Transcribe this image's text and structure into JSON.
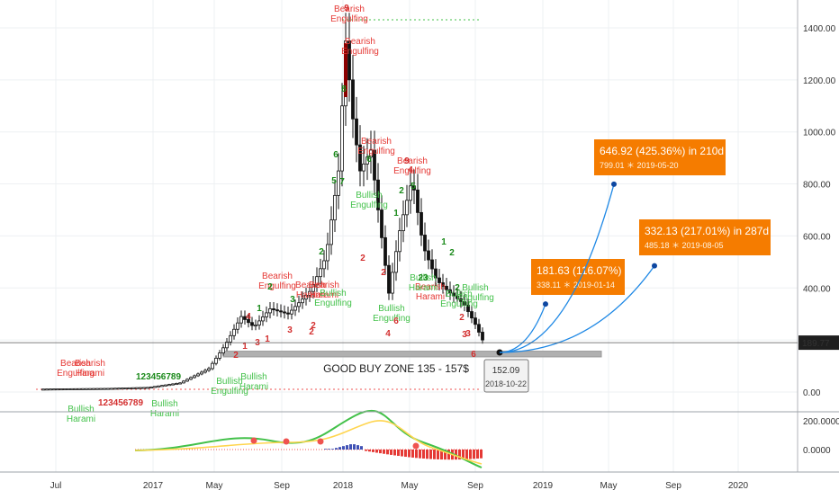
{
  "chart_data": {
    "type": "candlestick",
    "price_axis": {
      "ticks": [
        "1400.00",
        "1200.00",
        "1000.00",
        "800.00",
        "600.00",
        "400.00",
        "200.00",
        "0.00"
      ],
      "current_price": "189.77"
    },
    "time_axis": {
      "ticks": [
        "Jul",
        "2017",
        "May",
        "Sep",
        "2018",
        "May",
        "Sep",
        "2019",
        "May",
        "Sep",
        "2020"
      ]
    },
    "oscillator_axis": {
      "ticks": [
        "200.0000",
        "0.0000"
      ]
    },
    "zone": {
      "label": "GOOD BUY ZONE 135 - 157$",
      "low": 135,
      "high": 157
    },
    "anchor": {
      "price": "152.09",
      "date": "2018-10-22"
    },
    "projections": [
      {
        "headline": "181.63 (116.07%) in 84d",
        "detail": "338.11 ＊ 2019-01-14",
        "target": 338.11
      },
      {
        "headline": "646.92 (425.36%) in 210d",
        "detail": "799.01 ＊ 2019-05-20",
        "target": 799.01
      },
      {
        "headline": "332.13 (217.01%) in 287d",
        "detail": "485.18 ＊ 2019-08-05",
        "target": 485.18
      }
    ],
    "patterns": [
      {
        "text": "Bearish",
        "kind": "bear"
      },
      {
        "text": "Engulfing",
        "kind": "bear"
      },
      {
        "text": "Bearish",
        "kind": "bear"
      },
      {
        "text": "Engulfing",
        "kind": "bear"
      },
      {
        "text": "Bearish",
        "kind": "bear"
      },
      {
        "text": "Engulfing",
        "kind": "bear"
      },
      {
        "text": "Bearish",
        "kind": "bear"
      },
      {
        "text": "Harami",
        "kind": "bear"
      },
      {
        "text": "Bearish",
        "kind": "bear"
      },
      {
        "text": "Engulfing",
        "kind": "bear"
      },
      {
        "text": "Bearish",
        "kind": "bear"
      },
      {
        "text": "Engulfing",
        "kind": "bear"
      },
      {
        "text": "Bearish",
        "kind": "bear"
      },
      {
        "text": "Harami",
        "kind": "bear"
      },
      {
        "text": "Bearish",
        "kind": "bear"
      },
      {
        "text": "Engulfing",
        "kind": "bear"
      },
      {
        "text": "Bearish",
        "kind": "bear"
      },
      {
        "text": "Harami",
        "kind": "bear"
      },
      {
        "text": "Bearish",
        "kind": "bear"
      },
      {
        "text": "Harami",
        "kind": "bear"
      },
      {
        "text": "Bullish",
        "kind": "bull"
      },
      {
        "text": "Engulfing",
        "kind": "bull"
      },
      {
        "text": "Bullish",
        "kind": "bull"
      },
      {
        "text": "Harami",
        "kind": "bull"
      },
      {
        "text": "Bullish",
        "kind": "bull"
      },
      {
        "text": "Engulfing",
        "kind": "bull"
      },
      {
        "text": "Bullish",
        "kind": "bull"
      },
      {
        "text": "Engulfing",
        "kind": "bull"
      },
      {
        "text": "Bullish",
        "kind": "bull"
      },
      {
        "text": "Harami",
        "kind": "bull"
      },
      {
        "text": "Bullish",
        "kind": "bull"
      },
      {
        "text": "Engulfing",
        "kind": "bull"
      },
      {
        "text": "Bullish",
        "kind": "bull"
      },
      {
        "text": "Harami",
        "kind": "bull"
      },
      {
        "text": "Bullish",
        "kind": "bull"
      },
      {
        "text": "Engulfing",
        "kind": "bull"
      },
      {
        "text": "Bullish",
        "kind": "bull"
      },
      {
        "text": "Engulfing",
        "kind": "bull"
      },
      {
        "text": "Bullish",
        "kind": "bull"
      },
      {
        "text": "Harami",
        "kind": "bull"
      }
    ],
    "sequences": [
      {
        "text": "9",
        "kind": "r"
      },
      {
        "text": "8",
        "kind": "g"
      },
      {
        "text": "6",
        "kind": "g"
      },
      {
        "text": "5",
        "kind": "g"
      },
      {
        "text": "7",
        "kind": "g"
      },
      {
        "text": "2",
        "kind": "g"
      },
      {
        "text": "9",
        "kind": "r"
      },
      {
        "text": "4",
        "kind": "r"
      },
      {
        "text": "5",
        "kind": "g"
      },
      {
        "text": "2",
        "kind": "g"
      },
      {
        "text": "1",
        "kind": "g"
      },
      {
        "text": "2",
        "kind": "g"
      },
      {
        "text": "2",
        "kind": "r"
      },
      {
        "text": "2",
        "kind": "r"
      },
      {
        "text": "3",
        "kind": "r"
      },
      {
        "text": "4",
        "kind": "r"
      },
      {
        "text": "6",
        "kind": "r"
      },
      {
        "text": "23",
        "kind": "g"
      },
      {
        "text": "1",
        "kind": "g"
      },
      {
        "text": "2",
        "kind": "g"
      },
      {
        "text": "3",
        "kind": "r"
      },
      {
        "text": "6",
        "kind": "r"
      },
      {
        "text": "1",
        "kind": "r"
      },
      {
        "text": "2",
        "kind": "r"
      },
      {
        "text": "3",
        "kind": "r"
      },
      {
        "text": "2",
        "kind": "r"
      },
      {
        "text": "4",
        "kind": "r"
      },
      {
        "text": "1",
        "kind": "g"
      },
      {
        "text": "2",
        "kind": "g"
      },
      {
        "text": "3",
        "kind": "g"
      },
      {
        "text": "1",
        "kind": "r"
      },
      {
        "text": "2",
        "kind": "r"
      },
      {
        "text": "123456789",
        "kind": "g"
      },
      {
        "text": "123456789",
        "kind": "r"
      },
      {
        "text": "6",
        "kind": "g"
      },
      {
        "text": "2",
        "kind": "r"
      },
      {
        "text": "3",
        "kind": "r"
      }
    ],
    "colors": {
      "bull_line": "#43c14a",
      "bear_line": "#ef5350",
      "projection": "#f57c00",
      "arrow": "#1e88e5",
      "zone": "#b0b0b0"
    }
  }
}
